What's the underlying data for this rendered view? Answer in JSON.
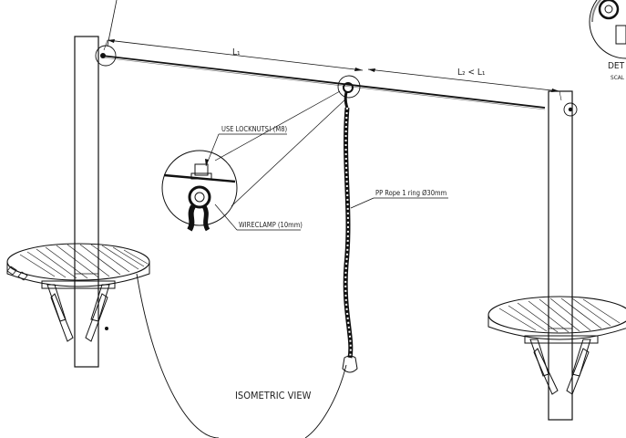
{
  "labels": {
    "l1": "L₁",
    "l2": "L₂ < L₁",
    "locknuts": "USE LOCKNUTS! (M8)",
    "wireclamp": "WIRECLAMP (10mm)",
    "rope": "PP Rope 1 ring Ø30mm",
    "view": "ISOMETRIC VIEW",
    "detail": "DET",
    "scale": "SCAL"
  }
}
